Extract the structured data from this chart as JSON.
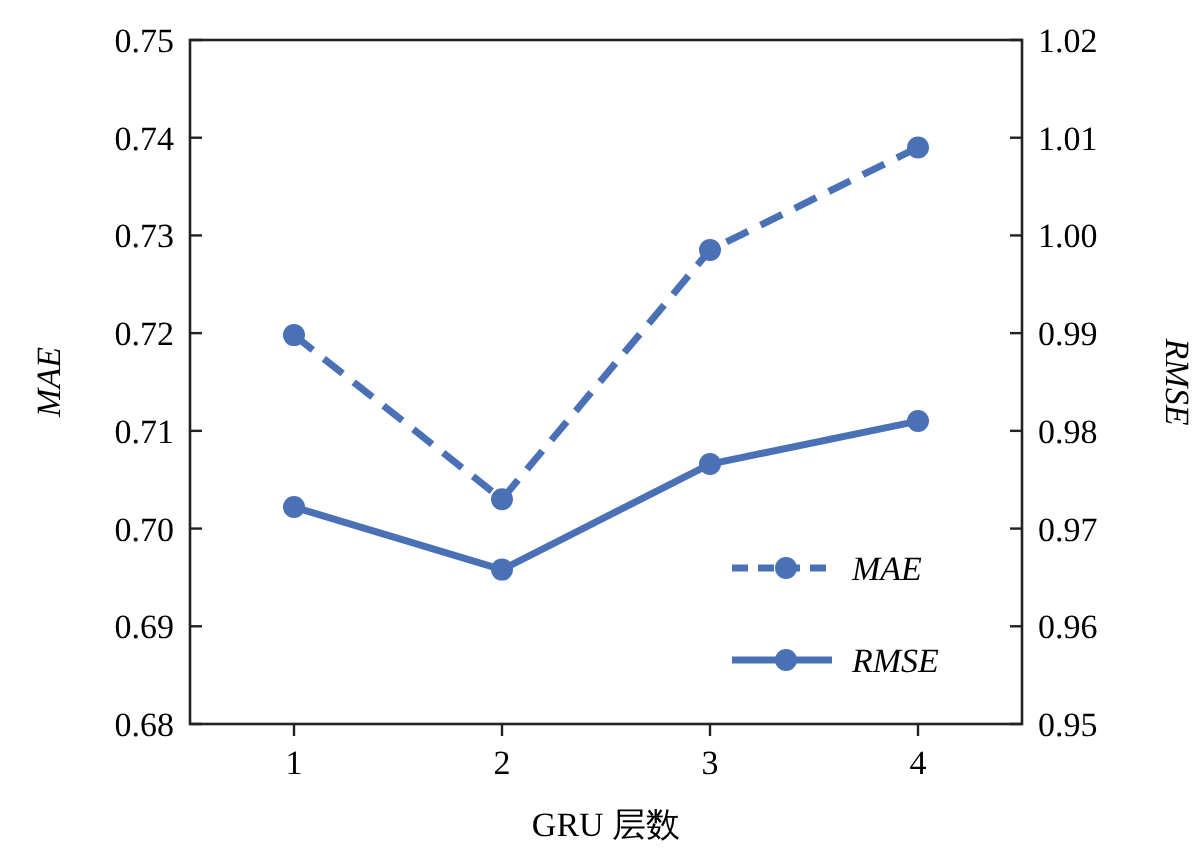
{
  "chart_data": {
    "type": "line",
    "xlabel": "GRU 层数",
    "ylabel": "MAE",
    "y2label": "RMSE",
    "categories": [
      "1",
      "2",
      "3",
      "4"
    ],
    "series": [
      {
        "name": "MAE",
        "color": "#4a70b5",
        "line_style": "dashed",
        "values": [
          0.7198,
          0.703,
          0.7285,
          0.739
        ]
      },
      {
        "name": "RMSE",
        "color": "#4a70b5",
        "line_style": "solid",
        "axis": "y2",
        "values": [
          0.9722,
          0.9658,
          0.9766,
          0.981
        ]
      }
    ],
    "ylim": [
      0.68,
      0.75
    ],
    "yticks": [
      {
        "value": 0.68,
        "label": "0.68"
      },
      {
        "value": 0.69,
        "label": "0.69"
      },
      {
        "value": 0.7,
        "label": "0.70"
      },
      {
        "value": 0.71,
        "label": "0.71"
      },
      {
        "value": 0.72,
        "label": "0.72"
      },
      {
        "value": 0.73,
        "label": "0.73"
      },
      {
        "value": 0.74,
        "label": "0.74"
      },
      {
        "value": 0.75,
        "label": "0.75"
      }
    ],
    "y2lim": [
      0.95,
      1.02
    ],
    "y2ticks": [
      {
        "value": 0.95,
        "label": "0.95"
      },
      {
        "value": 0.96,
        "label": "0.96"
      },
      {
        "value": 0.97,
        "label": "0.97"
      },
      {
        "value": 0.98,
        "label": "0.98"
      },
      {
        "value": 0.99,
        "label": "0.99"
      },
      {
        "value": 1.0,
        "label": "1.00"
      },
      {
        "value": 1.01,
        "label": "1.01"
      },
      {
        "value": 1.02,
        "label": "1.02"
      }
    ],
    "marker": "circle",
    "legend": "bottom right",
    "grid": false
  }
}
